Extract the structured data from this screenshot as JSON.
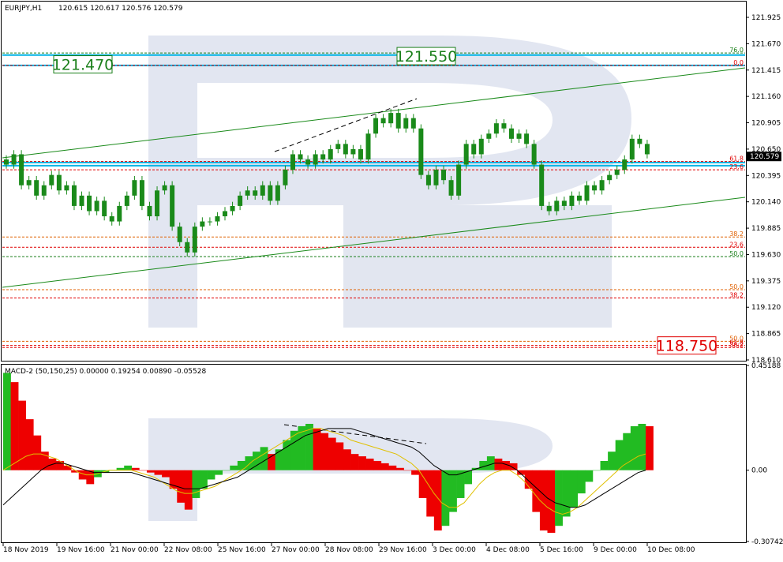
{
  "chart_data": [
    {
      "type": "candlestick",
      "title": "EURJPY,H1",
      "ohlc_header": "120.615 120.617 120.576 120.579",
      "ylim": [
        118.61,
        122.07
      ],
      "y_ticks": [
        "121.925",
        "121.670",
        "121.415",
        "121.160",
        "120.905",
        "120.650",
        "120.395",
        "120.140",
        "119.885",
        "119.630",
        "119.375",
        "119.120",
        "118.865",
        "118.610"
      ],
      "current_price": "120.579",
      "x_ticks": [
        "18 Nov 2019",
        "19 Nov 16:00",
        "21 Nov 00:00",
        "22 Nov 08:00",
        "25 Nov 16:00",
        "27 Nov 00:00",
        "28 Nov 08:00",
        "29 Nov 16:00",
        "3 Dec 00:00",
        "4 Dec 08:00",
        "5 Dec 16:00",
        "9 Dec 00:00",
        "10 Dec 08:00"
      ],
      "price_boxes": [
        {
          "label": "121.470",
          "value": 121.47,
          "color": "#1a7f1a"
        },
        {
          "label": "121.550",
          "value": 121.55,
          "color": "#1a7f1a"
        },
        {
          "label": "118.750",
          "value": 118.75,
          "color": "#e00000"
        }
      ],
      "horizontal_levels": [
        {
          "value": 121.56,
          "color": "#00b4e6",
          "style": "solid"
        },
        {
          "value": 121.46,
          "color": "#00b4e6",
          "style": "solid"
        },
        {
          "value": 120.52,
          "color": "#00b4e6",
          "style": "solid"
        },
        {
          "value": 120.49,
          "color": "#00b4e6",
          "style": "solid"
        }
      ],
      "fib_levels": [
        {
          "label": "76.0",
          "value": 121.58,
          "color": "#1a7f1a"
        },
        {
          "label": "0.0",
          "value": 121.46,
          "color": "#e00000"
        },
        {
          "label": "61.8",
          "value": 120.53,
          "color": "#e00000"
        },
        {
          "label": "23.6",
          "value": 120.45,
          "color": "#e00000"
        },
        {
          "label": "38.2",
          "value": 119.8,
          "color": "#e06000"
        },
        {
          "label": "23.6",
          "value": 119.7,
          "color": "#e00000"
        },
        {
          "label": "50.0",
          "value": 119.61,
          "color": "#1a7f1a"
        },
        {
          "label": "50.0",
          "value": 119.29,
          "color": "#e06000"
        },
        {
          "label": "38.2",
          "value": 119.21,
          "color": "#e00000"
        },
        {
          "label": "50.0",
          "value": 118.79,
          "color": "#e06000"
        },
        {
          "label": "61.8",
          "value": 118.75,
          "color": "#e00000"
        },
        {
          "label": "38.2",
          "value": 118.73,
          "color": "#e00000"
        }
      ],
      "closes": [
        120.5,
        120.6,
        120.3,
        120.35,
        120.2,
        120.3,
        120.4,
        120.25,
        120.3,
        120.1,
        120.2,
        120.05,
        120.15,
        120.0,
        119.95,
        120.1,
        120.2,
        120.35,
        120.1,
        120.0,
        120.25,
        120.3,
        119.9,
        119.75,
        119.65,
        119.9,
        119.95,
        119.95,
        120.0,
        120.05,
        120.1,
        120.2,
        120.25,
        120.2,
        120.3,
        120.15,
        120.3,
        120.45,
        120.6,
        120.55,
        120.5,
        120.6,
        120.55,
        120.65,
        120.7,
        120.6,
        120.65,
        120.55,
        120.8,
        120.95,
        120.9,
        121.0,
        120.85,
        120.95,
        120.85,
        120.4,
        120.3,
        120.45,
        120.35,
        120.2,
        120.5,
        120.7,
        120.6,
        120.75,
        120.8,
        120.9,
        120.85,
        120.75,
        120.8,
        120.7,
        120.5,
        120.1,
        120.05,
        120.15,
        120.1,
        120.2,
        120.15,
        120.3,
        120.25,
        120.35,
        120.4,
        120.45,
        120.55,
        120.75,
        120.7,
        120.6
      ]
    },
    {
      "type": "histogram",
      "title": "MACD-2 (50,150,25) 0.00000 0.19254 0.00890 -0.05528",
      "ylim": [
        -0.3074,
        0.4519
      ],
      "y_ticks": [
        "0.45188",
        "0.00",
        "-0.30742"
      ],
      "histogram": [
        0.42,
        0.38,
        0.3,
        0.22,
        0.15,
        0.08,
        0.05,
        0.04,
        0.02,
        -0.01,
        -0.04,
        -0.06,
        -0.03,
        -0.01,
        0.0,
        0.01,
        0.02,
        0.01,
        0.0,
        -0.01,
        -0.02,
        -0.03,
        -0.08,
        -0.14,
        -0.17,
        -0.12,
        -0.08,
        -0.04,
        -0.02,
        0.0,
        0.02,
        0.04,
        0.06,
        0.08,
        0.1,
        0.07,
        0.09,
        0.13,
        0.17,
        0.19,
        0.2,
        0.18,
        0.16,
        0.14,
        0.12,
        0.09,
        0.07,
        0.06,
        0.05,
        0.04,
        0.03,
        0.02,
        0.01,
        0.0,
        -0.02,
        -0.12,
        -0.2,
        -0.26,
        -0.24,
        -0.18,
        -0.12,
        -0.06,
        0.01,
        0.04,
        0.06,
        0.05,
        0.04,
        0.03,
        -0.02,
        -0.08,
        -0.18,
        -0.26,
        -0.27,
        -0.24,
        -0.2,
        -0.16,
        -0.1,
        -0.05,
        0.0,
        0.04,
        0.08,
        0.13,
        0.16,
        0.19,
        0.2,
        0.19
      ],
      "signal_line": [
        0.0,
        0.02,
        0.04,
        0.06,
        0.07,
        0.07,
        0.06,
        0.05,
        0.03,
        0.01,
        -0.01,
        -0.02,
        -0.02,
        -0.01,
        0.0,
        0.0,
        0.0,
        0.0,
        -0.01,
        -0.02,
        -0.03,
        -0.05,
        -0.07,
        -0.09,
        -0.1,
        -0.1,
        -0.09,
        -0.08,
        -0.07,
        -0.05,
        -0.03,
        -0.01,
        0.01,
        0.04,
        0.06,
        0.08,
        0.1,
        0.12,
        0.14,
        0.16,
        0.17,
        0.18,
        0.18,
        0.17,
        0.16,
        0.15,
        0.13,
        0.12,
        0.11,
        0.1,
        0.09,
        0.08,
        0.07,
        0.05,
        0.03,
        0.0,
        -0.05,
        -0.1,
        -0.14,
        -0.16,
        -0.16,
        -0.14,
        -0.1,
        -0.06,
        -0.03,
        -0.01,
        0.0,
        0.0,
        -0.02,
        -0.05,
        -0.09,
        -0.13,
        -0.16,
        -0.18,
        -0.19,
        -0.18,
        -0.16,
        -0.13,
        -0.1,
        -0.07,
        -0.04,
        -0.01,
        0.02,
        0.04,
        0.06,
        0.07
      ],
      "macd_line": [
        -0.15,
        -0.12,
        -0.09,
        -0.06,
        -0.03,
        0.0,
        0.02,
        0.03,
        0.03,
        0.02,
        0.01,
        0.0,
        -0.01,
        -0.01,
        -0.01,
        -0.01,
        -0.01,
        -0.01,
        -0.02,
        -0.03,
        -0.04,
        -0.05,
        -0.06,
        -0.07,
        -0.08,
        -0.08,
        -0.08,
        -0.07,
        -0.06,
        -0.05,
        -0.04,
        -0.03,
        -0.01,
        0.01,
        0.03,
        0.05,
        0.07,
        0.09,
        0.11,
        0.13,
        0.15,
        0.16,
        0.17,
        0.18,
        0.18,
        0.18,
        0.18,
        0.17,
        0.16,
        0.15,
        0.14,
        0.13,
        0.12,
        0.11,
        0.1,
        0.08,
        0.05,
        0.02,
        0.0,
        -0.02,
        -0.02,
        -0.01,
        0.0,
        0.01,
        0.02,
        0.03,
        0.03,
        0.02,
        0.0,
        -0.03,
        -0.06,
        -0.09,
        -0.12,
        -0.14,
        -0.15,
        -0.16,
        -0.16,
        -0.15,
        -0.13,
        -0.11,
        -0.09,
        -0.07,
        -0.05,
        -0.03,
        -0.01,
        0.0
      ]
    }
  ]
}
